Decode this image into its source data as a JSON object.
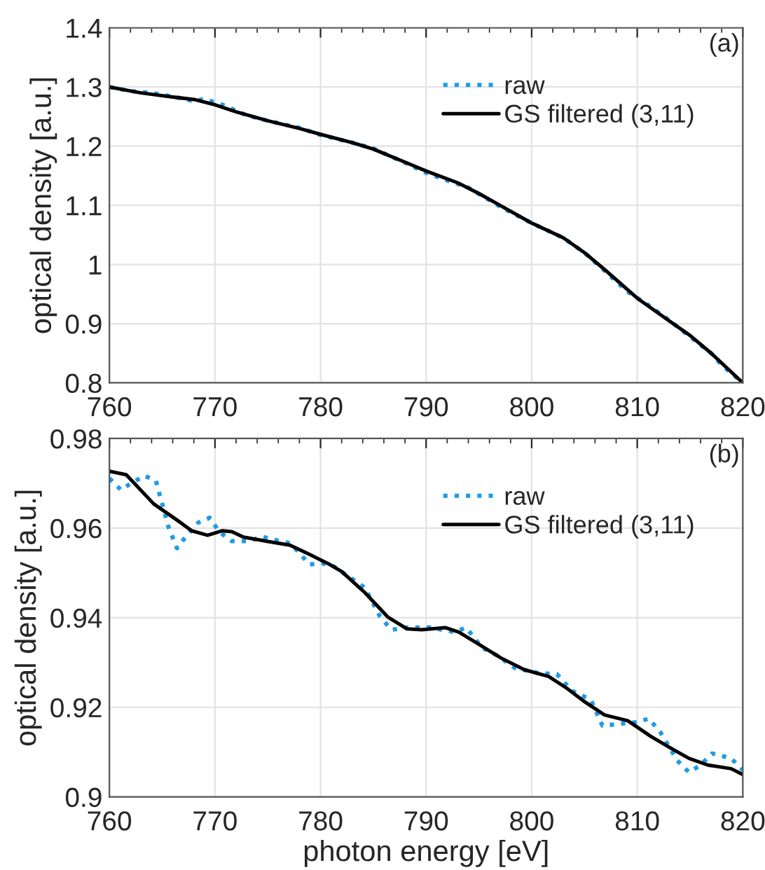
{
  "chart_data": [
    {
      "type": "line",
      "ylabel": "optical density [a.u.]",
      "xlim": [
        760,
        820
      ],
      "xticks": [
        760,
        770,
        780,
        790,
        800,
        810,
        820
      ],
      "ylim": [
        0.8,
        1.4
      ],
      "yticks": [
        0.8,
        0.9,
        1,
        1.1,
        1.2,
        1.3,
        1.4
      ],
      "grid": true,
      "legend": "top right",
      "annotations": [
        "(a)"
      ],
      "series": [
        {
          "name": "raw",
          "color": "#1e9be6",
          "line_style": "dotted",
          "x": [
            760,
            762,
            764,
            766,
            768,
            769,
            771,
            773,
            775,
            778,
            780,
            783,
            785,
            788,
            790,
            792,
            794,
            797,
            800,
            803,
            805,
            807,
            809,
            811,
            813,
            815,
            817,
            818,
            820
          ],
          "values": [
            1.3,
            1.293,
            1.29,
            1.284,
            1.276,
            1.28,
            1.268,
            1.252,
            1.243,
            1.231,
            1.219,
            1.206,
            1.196,
            1.172,
            1.155,
            1.142,
            1.13,
            1.098,
            1.07,
            1.045,
            1.02,
            0.988,
            0.955,
            0.932,
            0.906,
            0.878,
            0.85,
            0.83,
            0.8
          ]
        },
        {
          "name": "GS filtered (3,11)",
          "color": "#000000",
          "line_style": "solid",
          "x": [
            760,
            763,
            766,
            768,
            770,
            772,
            775,
            778,
            780,
            783,
            785,
            788,
            790,
            793,
            795,
            797,
            800,
            803,
            805,
            807,
            810,
            813,
            815,
            817,
            820
          ],
          "values": [
            1.3,
            1.29,
            1.283,
            1.279,
            1.27,
            1.258,
            1.243,
            1.23,
            1.22,
            1.206,
            1.195,
            1.173,
            1.158,
            1.138,
            1.12,
            1.1,
            1.07,
            1.045,
            1.02,
            0.99,
            0.943,
            0.905,
            0.88,
            0.85,
            0.8
          ]
        }
      ]
    },
    {
      "type": "line",
      "xlabel": "photon energy [eV]",
      "ylabel": "optical density [a.u.]",
      "xlim": [
        760,
        820
      ],
      "xticks": [
        760,
        770,
        780,
        790,
        800,
        810,
        820
      ],
      "ylim": [
        0.9,
        0.98
      ],
      "yticks": [
        0.9,
        0.92,
        0.94,
        0.96,
        0.98
      ],
      "grid": true,
      "legend": "top right",
      "annotations": [
        "(b)"
      ],
      "series": [
        {
          "name": "raw",
          "color": "#1e9be6",
          "line_style": "dotted",
          "x": [
            760,
            761.1,
            761.8,
            763.3,
            764.4,
            765.6,
            766.4,
            767.3,
            768.4,
            769.5,
            770.4,
            771.6,
            773.3,
            774.4,
            775.8,
            777.1,
            778,
            778.9,
            780.2,
            781.1,
            782.9,
            784.2,
            785.6,
            786.7,
            788.2,
            790.4,
            792.7,
            793.8,
            795.3,
            796.7,
            798.4,
            800.7,
            802.4,
            803.8,
            805.6,
            806.7,
            808.7,
            810,
            811.1,
            812.2,
            813.8,
            814.9,
            816,
            817.1,
            818.9,
            820
          ],
          "values": [
            0.9711,
            0.9685,
            0.9696,
            0.9717,
            0.9706,
            0.9602,
            0.9555,
            0.9583,
            0.9612,
            0.9623,
            0.9592,
            0.9571,
            0.9571,
            0.9581,
            0.9573,
            0.9566,
            0.9545,
            0.9519,
            0.9521,
            0.9517,
            0.9488,
            0.9467,
            0.9404,
            0.9373,
            0.9378,
            0.9378,
            0.9368,
            0.9378,
            0.9333,
            0.9316,
            0.9288,
            0.9276,
            0.9274,
            0.9237,
            0.9217,
            0.9159,
            0.9164,
            0.9167,
            0.9175,
            0.9144,
            0.9081,
            0.9055,
            0.9071,
            0.9097,
            0.9086,
            0.906
          ]
        },
        {
          "name": "GS filtered (3,11)",
          "color": "#000000",
          "line_style": "solid",
          "x": [
            760,
            761.6,
            764.2,
            766.4,
            767.8,
            769.3,
            770.7,
            771.6,
            772.7,
            775.3,
            777.1,
            778.9,
            780.7,
            782,
            784.2,
            786.4,
            788.2,
            789.6,
            791.8,
            793.1,
            794.9,
            797.1,
            799.3,
            801.6,
            803.3,
            805.1,
            806.9,
            809.1,
            811.3,
            813.1,
            814.9,
            816.7,
            818.9,
            820
          ],
          "values": [
            0.9727,
            0.9719,
            0.9654,
            0.9618,
            0.9594,
            0.9584,
            0.9594,
            0.9592,
            0.958,
            0.9569,
            0.9562,
            0.9542,
            0.9521,
            0.9503,
            0.9456,
            0.9401,
            0.9375,
            0.9373,
            0.9378,
            0.9368,
            0.9342,
            0.931,
            0.9284,
            0.9269,
            0.9243,
            0.9211,
            0.9183,
            0.917,
            0.9135,
            0.911,
            0.9086,
            0.9071,
            0.9063,
            0.905
          ]
        }
      ]
    }
  ]
}
